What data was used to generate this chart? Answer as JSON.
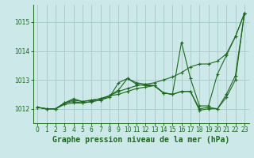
{
  "background_color": "#cce8e8",
  "grid_color": "#a8cccc",
  "line_color": "#1a6b1a",
  "marker_color": "#1a6b1a",
  "xlabel": "Graphe pression niveau de la mer (hPa)",
  "xlabel_fontsize": 7,
  "xlabel_color": "#1a6b1a",
  "ylim": [
    1011.5,
    1015.6
  ],
  "xlim": [
    -0.5,
    23.5
  ],
  "yticks": [
    1012,
    1013,
    1014,
    1015
  ],
  "xticks": [
    0,
    1,
    2,
    3,
    4,
    5,
    6,
    7,
    8,
    9,
    10,
    11,
    12,
    13,
    14,
    15,
    16,
    17,
    18,
    19,
    20,
    21,
    22,
    23
  ],
  "series": [
    [
      1012.05,
      1012.0,
      1012.0,
      1012.2,
      1012.25,
      1012.2,
      1012.25,
      1012.3,
      1012.4,
      1012.9,
      1013.05,
      1012.9,
      1012.85,
      1012.8,
      1012.55,
      1012.5,
      1014.3,
      1013.05,
      1012.1,
      1012.1,
      1013.2,
      1013.85,
      1014.5,
      1015.3
    ],
    [
      1012.05,
      1012.0,
      1012.0,
      1012.2,
      1012.3,
      1012.25,
      1012.3,
      1012.35,
      1012.45,
      1012.5,
      1012.6,
      1012.7,
      1012.75,
      1012.8,
      1012.55,
      1012.5,
      1012.6,
      1012.6,
      1011.95,
      1012.0,
      1012.0,
      1012.5,
      1013.15,
      1015.3
    ],
    [
      1012.05,
      1012.0,
      1012.0,
      1012.2,
      1012.35,
      1012.25,
      1012.3,
      1012.35,
      1012.45,
      1012.65,
      1013.05,
      1012.85,
      1012.8,
      1012.8,
      1012.55,
      1012.5,
      1012.6,
      1012.6,
      1012.0,
      1012.05,
      1012.0,
      1012.4,
      1013.0,
      1015.3
    ],
    [
      1012.05,
      1012.0,
      1012.0,
      1012.15,
      1012.2,
      1012.2,
      1012.25,
      1012.3,
      1012.45,
      1012.6,
      1012.7,
      1012.8,
      1012.85,
      1012.9,
      1013.0,
      1013.1,
      1013.25,
      1013.45,
      1013.55,
      1013.55,
      1013.65,
      1013.9,
      1014.5,
      1015.3
    ]
  ]
}
